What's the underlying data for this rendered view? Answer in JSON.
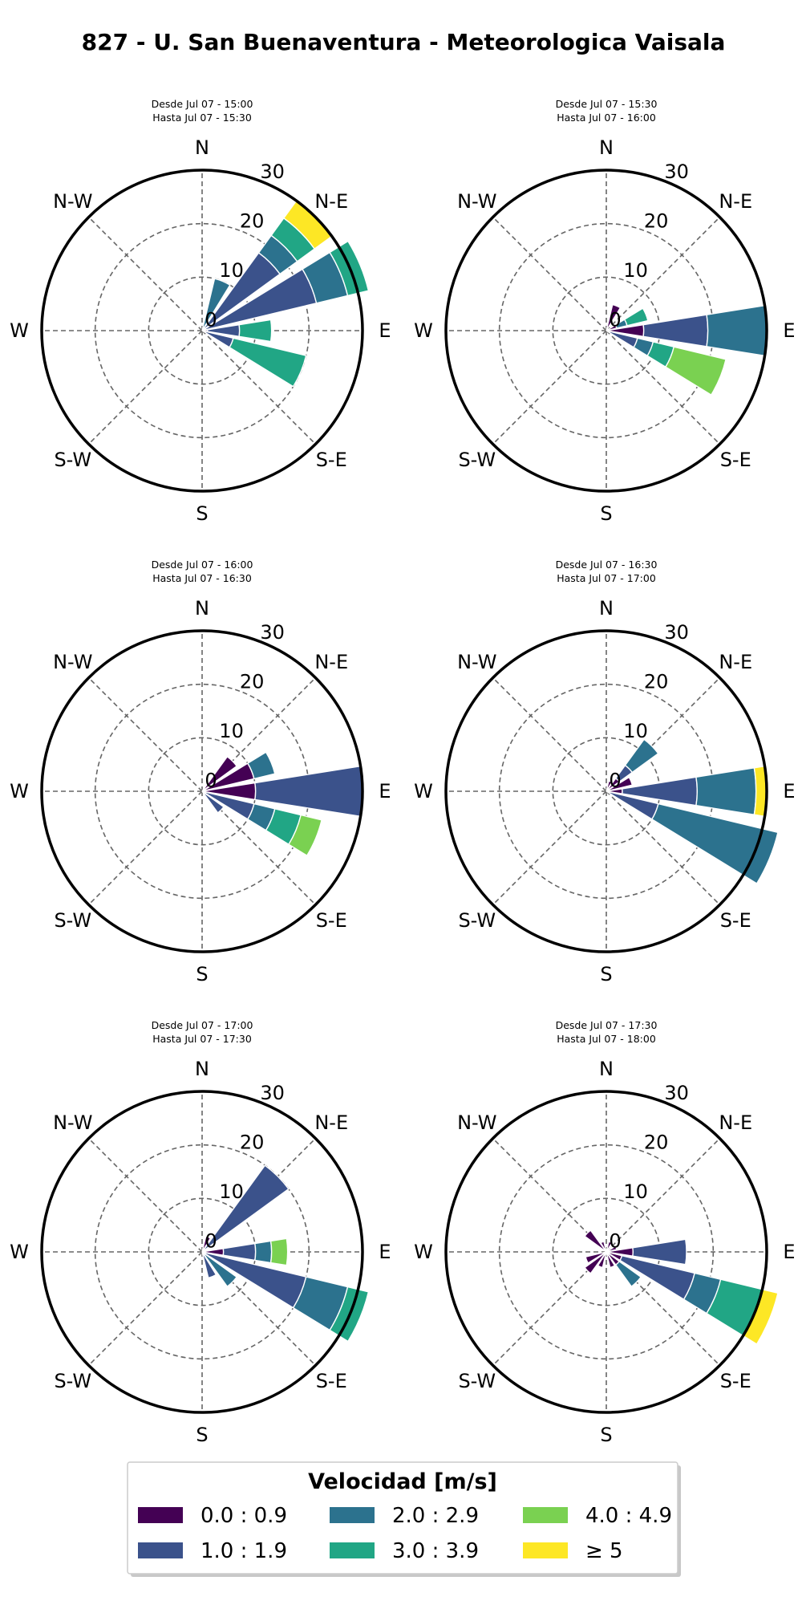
{
  "chart_data": {
    "type": "windrose",
    "title": "827 - U. San Buenaventura - Meteorologica Vaisala",
    "directions": [
      "N",
      "N-E",
      "E",
      "S-E",
      "S",
      "S-W",
      "W",
      "N-W"
    ],
    "rticks": [
      "0",
      "10",
      "20",
      "30"
    ],
    "rmax": 30,
    "bins": [
      {
        "label": "0.0 : 0.9",
        "color": "#440154"
      },
      {
        "label": "1.0 : 1.9",
        "color": "#3b528b"
      },
      {
        "label": "2.0 : 2.9",
        "color": "#2c728e"
      },
      {
        "label": "3.0 : 3.9",
        "color": "#21a685"
      },
      {
        "label": "4.0 : 4.9",
        "color": "#7ad151"
      },
      {
        "label": "≥  5",
        "color": "#fde725"
      }
    ],
    "legend_title": "Velocidad [m/s]",
    "panels": [
      {
        "desde": "Desde Jul 07 - 15:00",
        "hasta": "Hasta Jul 07 - 15:30",
        "bars": [
          {
            "dir": 22.5,
            "values": [
              0,
              0,
              10,
              0,
              0,
              0
            ]
          },
          {
            "dir": 45,
            "values": [
              0,
              18,
              4,
              4,
              0,
              4
            ]
          },
          {
            "dir": 67.5,
            "values": [
              0,
              22,
              6,
              4,
              0,
              0
            ]
          },
          {
            "dir": 90,
            "values": [
              1,
              6,
              0,
              6,
              0,
              0
            ]
          },
          {
            "dir": 112.5,
            "values": [
              0,
              6,
              0,
              14,
              0,
              0
            ]
          }
        ]
      },
      {
        "desde": "Desde Jul 07 - 15:30",
        "hasta": "Hasta Jul 07 - 16:00",
        "bars": [
          {
            "dir": 22.5,
            "values": [
              5,
              0,
              0,
              0,
              0,
              0
            ]
          },
          {
            "dir": 67.5,
            "values": [
              2,
              0,
              2,
              4,
              0,
              0
            ]
          },
          {
            "dir": 90,
            "values": [
              7,
              12,
              11,
              0,
              0,
              0
            ]
          },
          {
            "dir": 112.5,
            "values": [
              0,
              6,
              3,
              4,
              10,
              0
            ]
          }
        ]
      },
      {
        "desde": "Desde Jul 07 - 16:00",
        "hasta": "Hasta Jul 07 - 16:30",
        "bars": [
          {
            "dir": 45,
            "values": [
              8,
              0,
              0,
              0,
              0,
              0
            ]
          },
          {
            "dir": 67.5,
            "values": [
              10,
              0,
              4,
              0,
              0,
              0
            ]
          },
          {
            "dir": 90,
            "values": [
              10,
              20,
              0,
              0,
              0,
              0
            ]
          },
          {
            "dir": 112.5,
            "values": [
              0,
              10,
              4,
              5,
              4,
              0
            ]
          },
          {
            "dir": 135,
            "values": [
              0,
              5,
              0,
              0,
              0,
              0
            ]
          }
        ]
      },
      {
        "desde": "Desde Jul 07 - 16:30",
        "hasta": "Hasta Jul 07 - 17:00",
        "bars": [
          {
            "dir": 22.5,
            "values": [
              2,
              0,
              0,
              0,
              0,
              0
            ]
          },
          {
            "dir": 45,
            "values": [
              3,
              3,
              6,
              0,
              0,
              0
            ]
          },
          {
            "dir": 67.5,
            "values": [
              5,
              0,
              0,
              0,
              0,
              0
            ]
          },
          {
            "dir": 90,
            "values": [
              3,
              14,
              11,
              0,
              0,
              2
            ]
          },
          {
            "dir": 112.5,
            "values": [
              0,
              10,
              23,
              0,
              0,
              0
            ]
          }
        ]
      },
      {
        "desde": "Desde Jul 07 - 17:00",
        "hasta": "Hasta Jul 07 - 17:30",
        "bars": [
          {
            "dir": 22.5,
            "values": [
              3,
              0,
              0,
              0,
              0,
              0
            ]
          },
          {
            "dir": 45,
            "values": [
              0,
              20,
              0,
              0,
              0,
              0
            ]
          },
          {
            "dir": 90,
            "values": [
              4,
              6,
              3,
              0,
              3,
              0
            ]
          },
          {
            "dir": 112.5,
            "values": [
              0,
              20,
              8,
              4,
              0,
              0
            ]
          },
          {
            "dir": 135,
            "values": [
              0,
              0,
              8,
              0,
              0,
              0
            ]
          },
          {
            "dir": 157.5,
            "values": [
              0,
              5,
              0,
              0,
              0,
              0
            ]
          }
        ]
      },
      {
        "desde": "Desde Jul 07 - 17:30",
        "hasta": "Hasta Jul 07 - 18:00",
        "bars": [
          {
            "dir": 315,
            "values": [
              5,
              0,
              0,
              0,
              0,
              0
            ]
          },
          {
            "dir": 337.5,
            "values": [
              2,
              0,
              0,
              0,
              0,
              0
            ]
          },
          {
            "dir": 22.5,
            "values": [
              2,
              0,
              0,
              0,
              0,
              0
            ]
          },
          {
            "dir": 45,
            "values": [
              1,
              0,
              0,
              0,
              0,
              0
            ]
          },
          {
            "dir": 67.5,
            "values": [
              2,
              0,
              0,
              0,
              0,
              0
            ]
          },
          {
            "dir": 90,
            "values": [
              5,
              10,
              0,
              0,
              0,
              0
            ]
          },
          {
            "dir": 112.5,
            "values": [
              3,
              14,
              5,
              8,
              0,
              3
            ]
          },
          {
            "dir": 135,
            "values": [
              3,
              0,
              5,
              0,
              0,
              0
            ]
          },
          {
            "dir": 157.5,
            "values": [
              3,
              0,
              0,
              0,
              0,
              0
            ]
          },
          {
            "dir": 202.5,
            "values": [
              3,
              0,
              0,
              0,
              0,
              0
            ]
          },
          {
            "dir": 225,
            "values": [
              5,
              0,
              0,
              0,
              0,
              0
            ]
          },
          {
            "dir": 247.5,
            "values": [
              4,
              0,
              0,
              0,
              0,
              0
            ]
          }
        ]
      }
    ]
  }
}
